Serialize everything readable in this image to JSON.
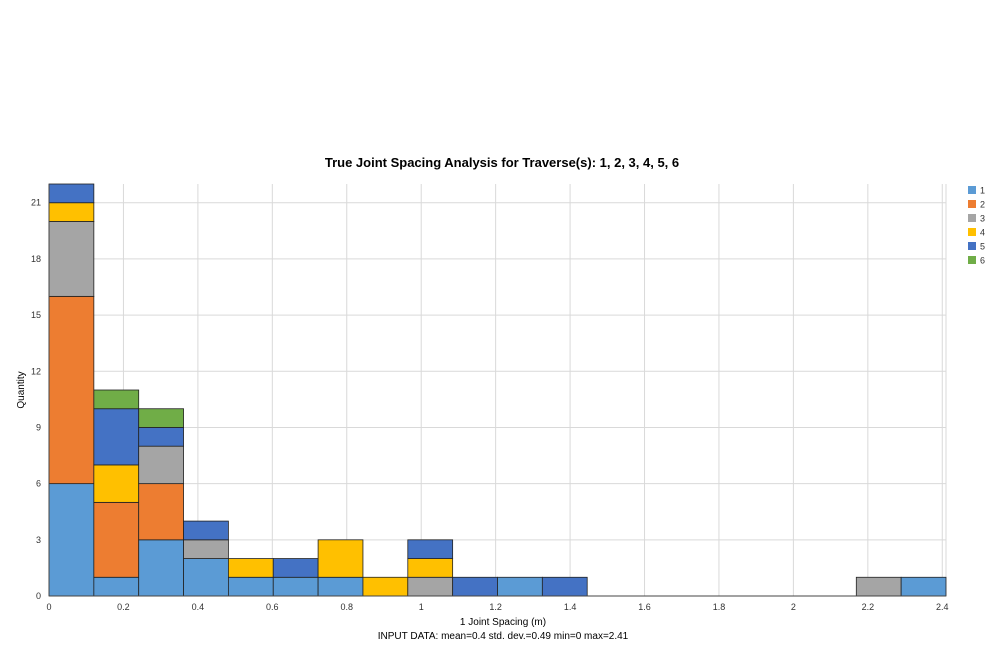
{
  "chart_data": {
    "type": "bar",
    "stacked": true,
    "title": "True Joint Spacing Analysis for Traverse(s): 1, 2, 3, 4, 5, 6",
    "xlabel": "1 Joint Spacing (m)",
    "ylabel": "Quantity",
    "footnote": "INPUT DATA: mean=0.4 std. dev.=0.49 min=0 max=2.41",
    "xlim": [
      0,
      2.41
    ],
    "ylim": [
      0,
      22
    ],
    "xticks": [
      "0",
      "0.2",
      "0.4",
      "0.6",
      "0.8",
      "1",
      "1.2",
      "1.4",
      "1.6",
      "1.8",
      "2",
      "2.2",
      "2.4"
    ],
    "yticks": [
      "0",
      "3",
      "6",
      "9",
      "12",
      "15",
      "18",
      "21"
    ],
    "grid": true,
    "legend_position": "right",
    "bin_width": 0.1205,
    "bin_starts": [
      0,
      0.1205,
      0.241,
      0.3615,
      0.482,
      0.6025,
      0.723,
      0.8435,
      0.964,
      1.0845,
      1.205,
      1.3255,
      2.169,
      2.2895
    ],
    "series": [
      {
        "name": "1",
        "color": "#5b9bd5",
        "values": [
          6,
          1,
          3,
          2,
          1,
          1,
          1,
          0,
          0,
          0,
          1,
          0,
          0,
          1
        ]
      },
      {
        "name": "2",
        "color": "#ed7d31",
        "values": [
          10,
          4,
          3,
          0,
          0,
          0,
          0,
          0,
          0,
          0,
          0,
          0,
          0,
          0
        ]
      },
      {
        "name": "3",
        "color": "#a5a5a5",
        "values": [
          4,
          0,
          2,
          1,
          0,
          0,
          0,
          0,
          1,
          0,
          0,
          0,
          1,
          0
        ]
      },
      {
        "name": "4",
        "color": "#ffc000",
        "values": [
          1,
          2,
          0,
          0,
          1,
          0,
          2,
          1,
          1,
          0,
          0,
          0,
          0,
          0
        ]
      },
      {
        "name": "5",
        "color": "#4472c4",
        "values": [
          1,
          3,
          1,
          1,
          0,
          1,
          0,
          0,
          1,
          1,
          0,
          1,
          0,
          0
        ]
      },
      {
        "name": "6",
        "color": "#70ad47",
        "values": [
          0,
          1,
          1,
          0,
          0,
          0,
          0,
          0,
          0,
          0,
          0,
          0,
          0,
          0
        ]
      }
    ]
  }
}
